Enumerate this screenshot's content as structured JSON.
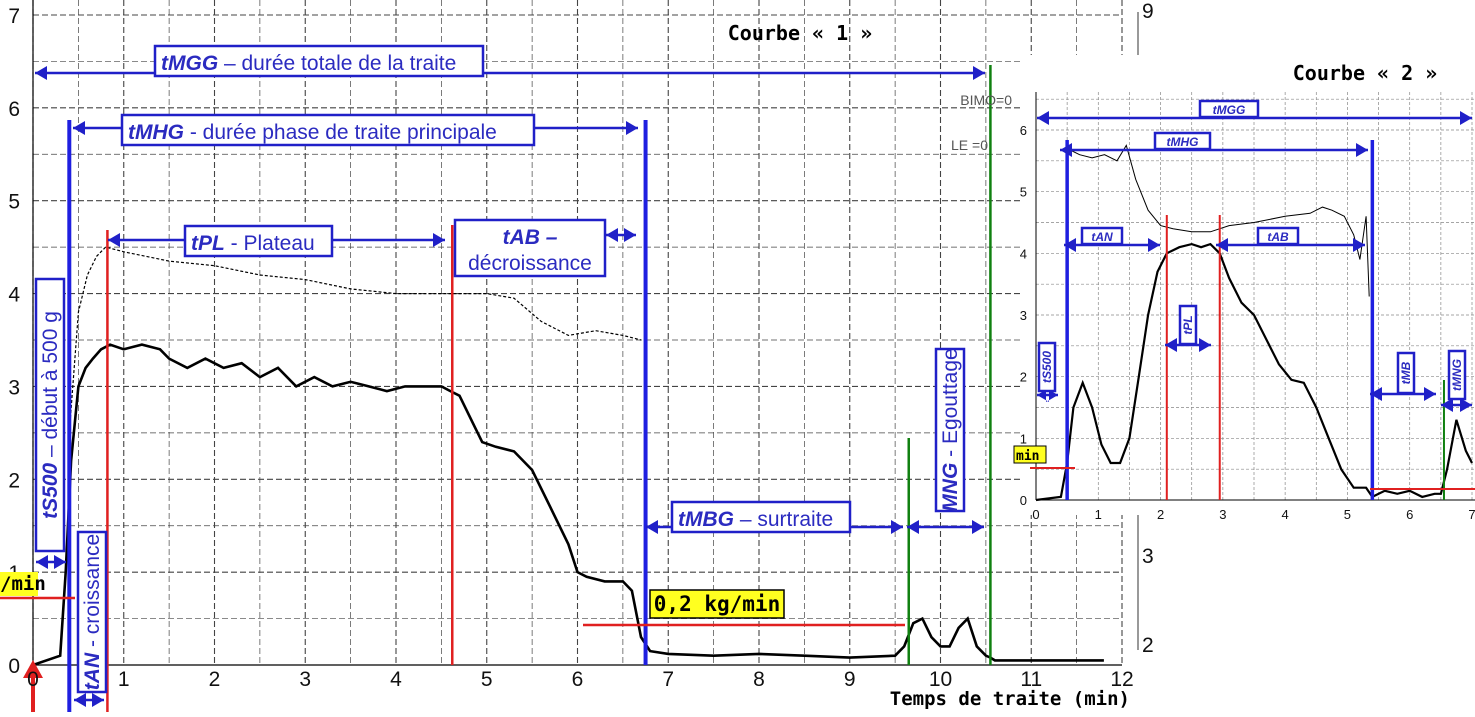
{
  "chart_data": [
    {
      "type": "line",
      "title": "Courbe « 1 »",
      "xlabel": "Temps de traite (min)",
      "ylabel": "",
      "xlim": [
        0,
        12
      ],
      "ylim": [
        0,
        7
      ],
      "x_ticks": [
        "0",
        "1",
        "2",
        "3",
        "4",
        "5",
        "6",
        "7",
        "8",
        "9",
        "10",
        "11",
        "12"
      ],
      "y_ticks": [
        "0",
        "1",
        "2",
        "3",
        "4",
        "5",
        "6",
        "7"
      ],
      "y2_ticks": [
        "2",
        "3",
        "9"
      ],
      "grid": true,
      "series": [
        {
          "style": "solid",
          "x": [
            0,
            0.3,
            0.36,
            0.42,
            0.5,
            0.58,
            0.66,
            0.75,
            0.85,
            1.0,
            1.2,
            1.4,
            1.5,
            1.7,
            1.9,
            2.1,
            2.3,
            2.5,
            2.7,
            2.9,
            3.1,
            3.3,
            3.5,
            3.7,
            3.9,
            4.1,
            4.3,
            4.5,
            4.6,
            4.7,
            4.85,
            4.95,
            5.1,
            5.3,
            5.5,
            5.7,
            5.9,
            6.0,
            6.1,
            6.3,
            6.5,
            6.6,
            6.7,
            6.8,
            7.0,
            7.5,
            8.0,
            8.5,
            9.0,
            9.5,
            9.6,
            9.7,
            9.8,
            9.9,
            10.0,
            10.1,
            10.2,
            10.3,
            10.4,
            10.5,
            10.55,
            10.6,
            11.0,
            11.8
          ],
          "y": [
            0,
            0.1,
            1.0,
            2.2,
            3.0,
            3.2,
            3.3,
            3.4,
            3.45,
            3.4,
            3.45,
            3.4,
            3.3,
            3.2,
            3.3,
            3.2,
            3.25,
            3.1,
            3.2,
            3.0,
            3.1,
            3.0,
            3.05,
            3.0,
            2.95,
            3.0,
            3.0,
            3.0,
            2.95,
            2.9,
            2.6,
            2.4,
            2.35,
            2.3,
            2.1,
            1.7,
            1.3,
            1.0,
            0.95,
            0.9,
            0.9,
            0.8,
            0.3,
            0.15,
            0.12,
            0.1,
            0.12,
            0.1,
            0.08,
            0.1,
            0.2,
            0.45,
            0.5,
            0.3,
            0.2,
            0.2,
            0.4,
            0.5,
            0.2,
            0.1,
            0.08,
            0.05,
            0.05,
            0.05
          ]
        },
        {
          "style": "dotted",
          "x": [
            0.4,
            0.5,
            0.6,
            0.7,
            0.8,
            1.0,
            1.5,
            2.0,
            2.5,
            3.0,
            3.5,
            4.0,
            4.5,
            5.0,
            5.3,
            5.6,
            5.9,
            6.2,
            6.5,
            6.7
          ],
          "y": [
            2.5,
            3.8,
            4.2,
            4.4,
            4.5,
            4.45,
            4.35,
            4.3,
            4.2,
            4.15,
            4.05,
            4.0,
            4.0,
            4.0,
            3.95,
            3.7,
            3.55,
            3.6,
            3.55,
            3.5
          ]
        }
      ],
      "vlines": [
        {
          "x": 0.4,
          "color": "#1f1fe0"
        },
        {
          "x": 0.82,
          "color": "#e02020"
        },
        {
          "x": 4.62,
          "color": "#e02020"
        },
        {
          "x": 6.75,
          "color": "#1f1fe0"
        },
        {
          "x": 9.65,
          "color": "#108010"
        },
        {
          "x": 10.55,
          "color": "#108010"
        }
      ],
      "threshold_label": "0,2 kg/min",
      "edge_label_left": "/min",
      "annotations": {
        "tmgg": {
          "code": "tMGG",
          "text": " – durée totale de la traite"
        },
        "tmhg": {
          "code": "tMHG",
          "text": " - durée phase de traite principale"
        },
        "tpl": {
          "code": "tPL",
          "text": " - Plateau"
        },
        "tab": {
          "code": "tAB –",
          "text": "décroissance"
        },
        "tmbg": {
          "code": "tMBG",
          "text": " – surtraite"
        },
        "mng": {
          "code": "MNG",
          "text": " - Egouttage"
        },
        "ts500": {
          "code": "tS500",
          "text": " – début à 500 g"
        },
        "tan": {
          "code": "tAN",
          "text": " - croissance"
        }
      },
      "side_text": [
        "BIMO=0",
        "LE =0"
      ]
    },
    {
      "type": "line",
      "title": "Courbe « 2 »",
      "xlim": [
        0,
        7
      ],
      "ylim": [
        0,
        6
      ],
      "x_ticks": [
        "0",
        "1",
        "2",
        "3",
        "4",
        "5",
        "6",
        "7"
      ],
      "y_ticks": [
        "0",
        "1",
        "2",
        "3",
        "4",
        "5",
        "6"
      ],
      "grid": true,
      "series": [
        {
          "style": "solid",
          "x": [
            0,
            0.4,
            0.5,
            0.6,
            0.75,
            0.9,
            1.05,
            1.2,
            1.35,
            1.5,
            1.65,
            1.8,
            1.95,
            2.1,
            2.3,
            2.5,
            2.65,
            2.8,
            2.95,
            3.1,
            3.3,
            3.5,
            3.7,
            3.9,
            4.1,
            4.3,
            4.5,
            4.7,
            4.9,
            5.1,
            5.3,
            5.4,
            5.6,
            5.8,
            6.0,
            6.2,
            6.4,
            6.5,
            6.6,
            6.75,
            6.9,
            7.0
          ],
          "y": [
            0,
            0.05,
            0.6,
            1.5,
            1.9,
            1.5,
            0.9,
            0.6,
            0.6,
            1.0,
            2.0,
            3.0,
            3.7,
            4.0,
            4.1,
            4.15,
            4.1,
            4.15,
            4.0,
            3.6,
            3.2,
            3.0,
            2.6,
            2.2,
            1.95,
            1.9,
            1.5,
            1.0,
            0.5,
            0.2,
            0.2,
            0.05,
            0.15,
            0.1,
            0.15,
            0.05,
            0.1,
            0.1,
            0.5,
            1.3,
            0.8,
            0.6
          ]
        },
        {
          "style": "thin",
          "x": [
            0.5,
            0.7,
            0.9,
            1.1,
            1.3,
            1.45,
            1.6,
            1.8,
            2.0,
            2.2,
            2.5,
            2.8,
            3.1,
            3.5,
            4.0,
            4.4,
            4.6,
            4.75,
            4.95,
            5.1,
            5.2,
            5.3,
            5.35
          ],
          "y": [
            5.7,
            5.6,
            5.55,
            5.6,
            5.5,
            5.75,
            5.2,
            4.7,
            4.45,
            4.4,
            4.35,
            4.35,
            4.45,
            4.5,
            4.6,
            4.65,
            4.75,
            4.7,
            4.6,
            4.3,
            3.9,
            4.6,
            3.3
          ]
        }
      ],
      "vlines": [
        {
          "x": 0.5,
          "color": "#1f1fe0"
        },
        {
          "x": 2.1,
          "color": "#e02020"
        },
        {
          "x": 2.95,
          "color": "#e02020"
        },
        {
          "x": 5.4,
          "color": "#1f1fe0"
        },
        {
          "x": 6.55,
          "color": "#108010"
        }
      ],
      "edge_label_left": "min",
      "labels": {
        "tmgg": "tMGG",
        "tmhg": "tMHG",
        "tan": "tAN",
        "tab": "tAB",
        "tpl": "tPL",
        "ts500": "tS500",
        "tmb": "tMB",
        "tmng": "tMNG"
      }
    }
  ]
}
